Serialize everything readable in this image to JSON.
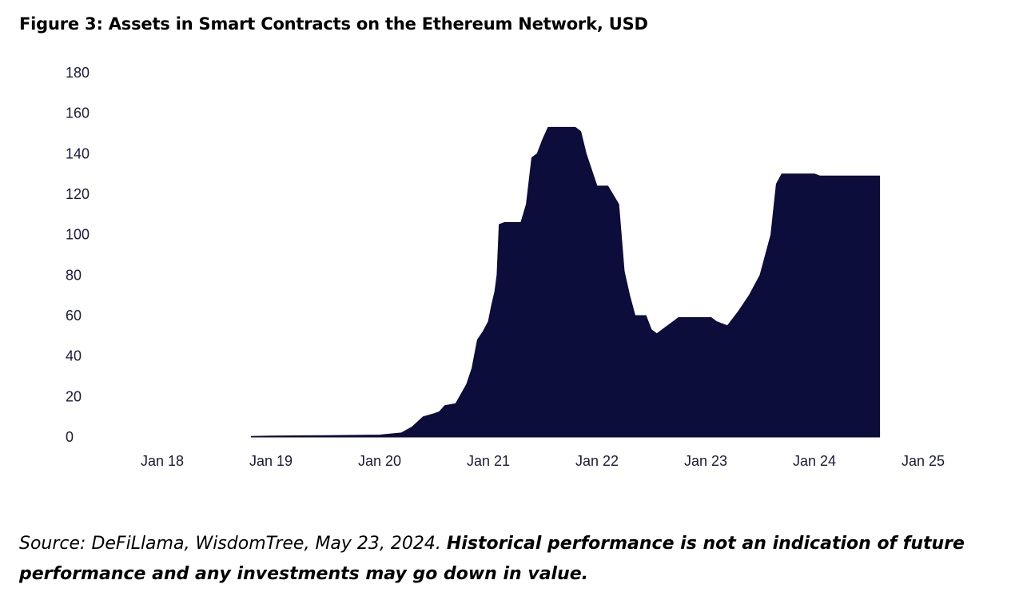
{
  "figure": {
    "title": "Figure 3: Assets in Smart Contracts on the Ethereum Network, USD"
  },
  "footer": {
    "source": "Source: DeFiLlama, WisdomTree, May 23, 2024. ",
    "disclaimer": "Historical performance is not an indication of future performance and any investments may go down in value."
  },
  "chart_data": {
    "type": "area",
    "title": "Figure 3: Assets in Smart Contracts on the Ethereum Network, USD",
    "xlabel": "",
    "ylabel": "",
    "ylim": [
      0,
      180
    ],
    "yticks": [
      "0",
      "20",
      "40",
      "60",
      "80",
      "100",
      "120",
      "140",
      "160",
      "180"
    ],
    "xlim": [
      "Jan 18",
      "Jan 25"
    ],
    "xticks": [
      "Jan 18",
      "Jan 19",
      "Jan 20",
      "Jan 21",
      "Jan 22",
      "Jan 23",
      "Jan 24",
      "Jan 25"
    ],
    "grid": false,
    "legend": "none",
    "color": "#0d0d3b",
    "series": [
      {
        "name": "Assets in Smart Contracts (USD)",
        "x_years_since_jan18": [
          0.82,
          1.0,
          1.5,
          2.0,
          2.2,
          2.3,
          2.4,
          2.5,
          2.55,
          2.6,
          2.7,
          2.8,
          2.85,
          2.9,
          2.95,
          3.0,
          3.03,
          3.06,
          3.08,
          3.1,
          3.15,
          3.2,
          3.25,
          3.3,
          3.35,
          3.4,
          3.45,
          3.5,
          3.55,
          3.6,
          3.65,
          3.7,
          3.75,
          3.8,
          3.85,
          3.9,
          4.0,
          4.05,
          4.1,
          4.2,
          4.25,
          4.3,
          4.35,
          4.4,
          4.45,
          4.5,
          4.55,
          4.6,
          4.65,
          4.7,
          4.75,
          4.8,
          4.85,
          4.9,
          5.0,
          5.05,
          5.1,
          5.2,
          5.3,
          5.4,
          5.45,
          5.5,
          5.6,
          5.65,
          5.7,
          5.75,
          5.8,
          5.85,
          5.9,
          5.95,
          6.0,
          6.05,
          6.1,
          6.2,
          6.3,
          6.35,
          6.4,
          6.5,
          6.55,
          6.6
        ],
        "values": [
          0.3,
          0.5,
          0.7,
          1.0,
          2.0,
          5.0,
          10.0,
          11.5,
          12.5,
          15.5,
          16.5,
          26.0,
          34.0,
          48.0,
          52.0,
          57.0,
          65.0,
          72.0,
          80.0,
          105.0,
          106.0,
          106.0,
          106.0,
          106.0,
          115.0,
          138.0,
          140.0,
          147.0,
          153.0,
          153.0,
          153.0,
          153.0,
          153.0,
          153.0,
          151.0,
          140.0,
          124.0,
          124.0,
          124.0,
          115.0,
          82.0,
          70.0,
          60.0,
          60.0,
          60.0,
          53.0,
          51.0,
          53.0,
          55.0,
          57.0,
          59.0,
          59.0,
          59.0,
          59.0,
          59.0,
          59.0,
          57.0,
          55.0,
          62.0,
          70.0,
          75.0,
          80.0,
          100.0,
          125.0,
          130.0,
          130.0,
          130.0,
          130.0,
          130.0,
          130.0,
          130.0,
          129.0,
          129.0,
          129.0,
          129.0,
          129.0,
          129.0,
          129.0,
          129.0,
          129.0
        ]
      }
    ]
  }
}
